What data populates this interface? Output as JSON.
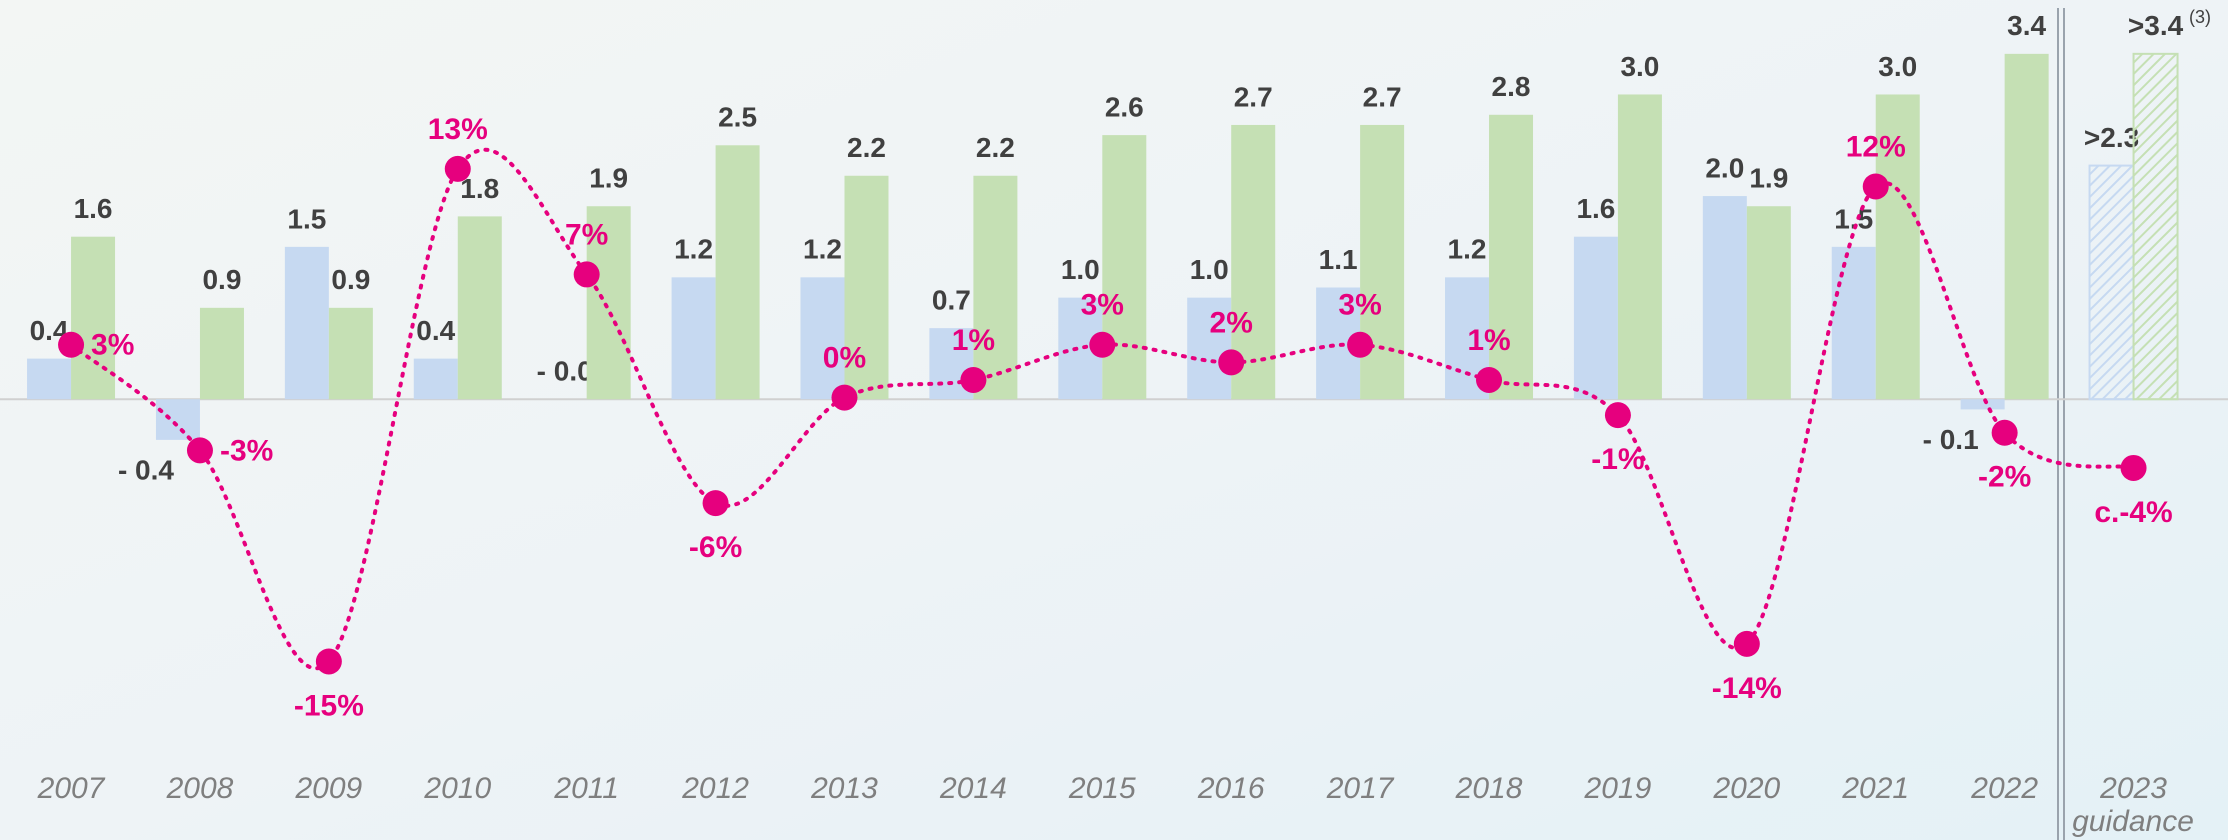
{
  "chart_data": {
    "type": "bar",
    "categories": [
      "2007",
      "2008",
      "2009",
      "2010",
      "2011",
      "2012",
      "2013",
      "2014",
      "2015",
      "2016",
      "2017",
      "2018",
      "2019",
      "2020",
      "2021",
      "2022",
      "2023"
    ],
    "series": [
      {
        "name": "Blue series",
        "color": "#c6d9f1",
        "values": [
          0.4,
          -0.4,
          1.5,
          0.4,
          0,
          1.2,
          1.2,
          0.7,
          1.0,
          1.0,
          1.1,
          1.2,
          1.6,
          2.0,
          1.5,
          -0.1,
          2.3
        ],
        "value_labels": [
          "0.4",
          "- 0.4",
          "1.5",
          "0.4",
          "- 0.0",
          "1.2",
          "1.2",
          "0.7",
          "1.0",
          "1.0",
          "1.1",
          "1.2",
          "1.6",
          "2.0",
          "1.5",
          "- 0.1",
          ">2.3"
        ]
      },
      {
        "name": "Green series",
        "color": "#c5e0b4",
        "values": [
          1.6,
          0.9,
          0.9,
          1.8,
          1.9,
          2.5,
          2.2,
          2.2,
          2.6,
          2.7,
          2.7,
          2.8,
          3.0,
          1.9,
          3.0,
          3.4,
          3.4
        ],
        "value_labels": [
          "1.6",
          "0.9",
          "0.9",
          "1.8",
          "1.9",
          "2.5",
          "2.2",
          "2.2",
          "2.6",
          "2.7",
          "2.7",
          "2.8",
          "3.0",
          "1.9",
          "3.0",
          "3.4",
          ">3.4"
        ]
      },
      {
        "name": "Pink series",
        "color": "#e6007e",
        "type": "line",
        "axis": "y2",
        "values": [
          3,
          -3,
          -15,
          13,
          7,
          -6,
          0,
          1,
          3,
          2,
          3,
          1,
          -1,
          -14,
          12,
          -2,
          -4
        ],
        "value_labels": [
          "3%",
          "-3%",
          "-15%",
          "13%",
          "7%",
          "-6%",
          "0%",
          "1%",
          "3%",
          "2%",
          "3%",
          "1%",
          "-1%",
          "-14%",
          "12%",
          "-2%",
          "c.-4%"
        ]
      }
    ],
    "ylim": [
      -3.62,
      3.93
    ],
    "y2lim": [
      -21,
      22.6
    ],
    "estimate_pattern": "hatch",
    "annotations": [
      "guidance",
      "(3)"
    ]
  }
}
